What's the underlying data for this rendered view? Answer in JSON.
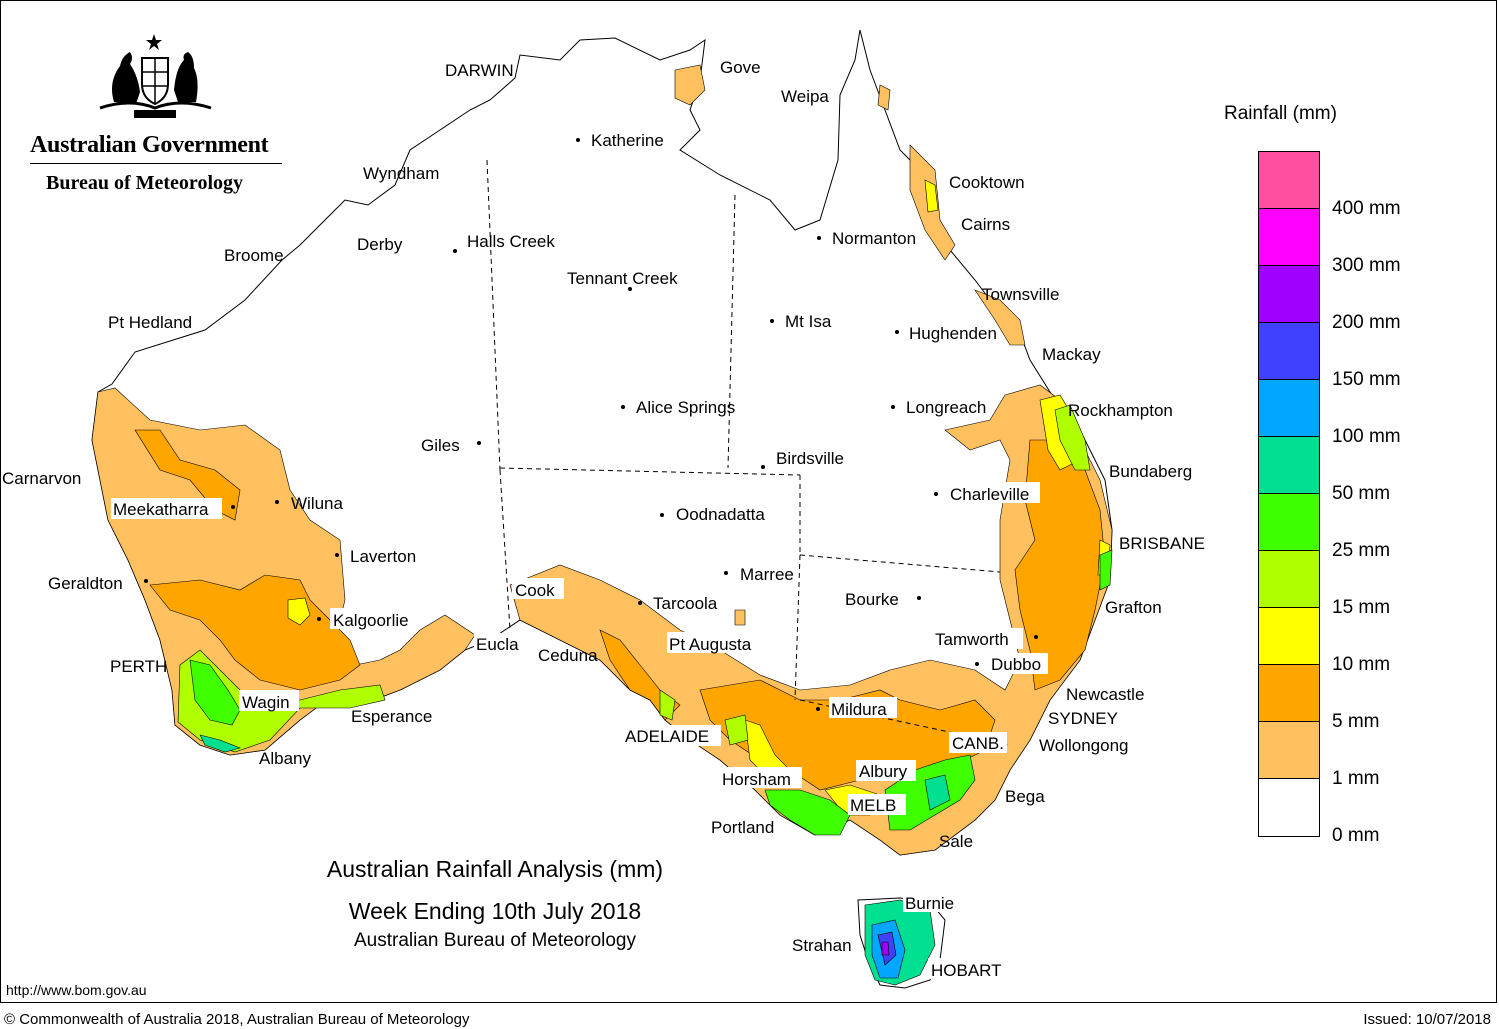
{
  "header": {
    "government": "Australian Government",
    "bureau": "Bureau of Meteorology",
    "crest_icon": "commonwealth-coat-of-arms"
  },
  "title": {
    "line1": "Australian Rainfall Analysis (mm)",
    "line2": "Week Ending 10th July 2018",
    "line3": "Australian Bureau of Meteorology"
  },
  "url": "http://www.bom.gov.au",
  "copyright": "© Commonwealth of Australia 2018, Australian Bureau of Meteorology",
  "issued": "Issued: 10/07/2018",
  "legend": {
    "title": "Rainfall (mm)",
    "bands": [
      {
        "label": "400 mm",
        "color": "#ff4fa0"
      },
      {
        "label": "300 mm",
        "color": "#ff00ff"
      },
      {
        "label": "200 mm",
        "color": "#a000ff"
      },
      {
        "label": "150 mm",
        "color": "#4040ff"
      },
      {
        "label": "100 mm",
        "color": "#00a6ff"
      },
      {
        "label": "50 mm",
        "color": "#00e090"
      },
      {
        "label": "25 mm",
        "color": "#40ff00"
      },
      {
        "label": "15 mm",
        "color": "#b0ff00"
      },
      {
        "label": "10 mm",
        "color": "#ffff00"
      },
      {
        "label": "5 mm",
        "color": "#ffa500"
      },
      {
        "label": "1 mm",
        "color": "#ffc060"
      },
      {
        "label": "0 mm",
        "color": "#ffffff"
      }
    ]
  },
  "places": {
    "darwin": "DARWIN",
    "gove": "Gove",
    "weipa": "Weipa",
    "katherine": "Katherine",
    "cooktown": "Cooktown",
    "wyndham": "Wyndham",
    "cairns": "Cairns",
    "halls_creek": "Halls Creek",
    "derby": "Derby",
    "broome": "Broome",
    "normanton": "Normanton",
    "tennant_creek": "Tennant Creek",
    "townsville": "Townsville",
    "pt_hedland": "Pt Hedland",
    "mt_isa": "Mt Isa",
    "hughenden": "Hughenden",
    "mackay": "Mackay",
    "alice_springs": "Alice Springs",
    "longreach": "Longreach",
    "rockhampton": "Rockhampton",
    "giles": "Giles",
    "birdsville": "Birdsville",
    "bundaberg": "Bundaberg",
    "carnarvon": "Carnarvon",
    "meekatharra": "Meekatharra",
    "wiluna": "Wiluna",
    "charleville": "Charleville",
    "oodnadatta": "Oodnadatta",
    "brisbane": "BRISBANE",
    "laverton": "Laverton",
    "marree": "Marree",
    "geraldton": "Geraldton",
    "cook": "Cook",
    "bourke": "Bourke",
    "tarcoola": "Tarcoola",
    "grafton": "Grafton",
    "kalgoorlie": "Kalgoorlie",
    "eucla": "Eucla",
    "pt_augusta": "Pt Augusta",
    "tamworth": "Tamworth",
    "ceduna": "Ceduna",
    "perth": "PERTH",
    "dubbo": "Dubbo",
    "newcastle": "Newcastle",
    "wagin": "Wagin",
    "mildura": "Mildura",
    "esperance": "Esperance",
    "sydney": "SYDNEY",
    "adelaide": "ADELAIDE",
    "canb": "CANB.",
    "wollongong": "Wollongong",
    "albany": "Albany",
    "albury": "Albury",
    "horsham": "Horsham",
    "bega": "Bega",
    "melb": "MELB",
    "portland": "Portland",
    "sale": "Sale",
    "burnie": "Burnie",
    "strahan": "Strahan",
    "hobart": "HOBART"
  }
}
